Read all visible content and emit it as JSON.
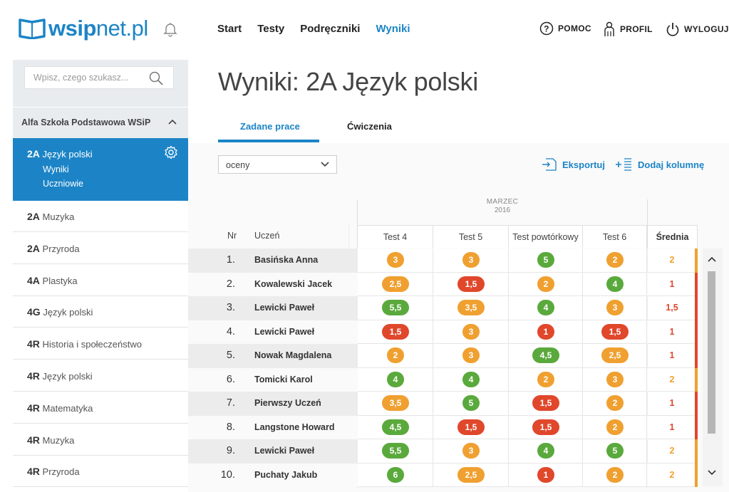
{
  "brand": {
    "logo_text_bold": "wsip",
    "logo_text_light": "net.pl"
  },
  "nav": [
    {
      "label": "Start",
      "active": false
    },
    {
      "label": "Testy",
      "active": false
    },
    {
      "label": "Podręczniki",
      "active": false
    },
    {
      "label": "Wyniki",
      "active": true
    }
  ],
  "header_actions": {
    "help": "POMOC",
    "profile": "PROFIL",
    "logout": "WYLOGUJ"
  },
  "sidebar": {
    "search_placeholder": "Wpisz, czego szukasz...",
    "school": "Alfa Szkoła Podstawowa WSiP",
    "active_class": {
      "code": "2A",
      "name": "Język polski",
      "sub1": "Wyniki",
      "sub2": "Uczniowie"
    },
    "classes": [
      {
        "code": "2A",
        "name": "Muzyka"
      },
      {
        "code": "2A",
        "name": "Przyroda"
      },
      {
        "code": "4A",
        "name": "Plastyka"
      },
      {
        "code": "4G",
        "name": "Język polski"
      },
      {
        "code": "4R",
        "name": "Historia i społeczeństwo"
      },
      {
        "code": "4R",
        "name": "Język polski"
      },
      {
        "code": "4R",
        "name": "Matematyka"
      },
      {
        "code": "4R",
        "name": "Muzyka"
      },
      {
        "code": "4R",
        "name": "Przyroda"
      }
    ]
  },
  "page_title": "Wyniki: 2A Język polski",
  "tabs": [
    {
      "label": "Zadane prace",
      "active": true
    },
    {
      "label": "Ćwiczenia",
      "active": false
    }
  ],
  "filter_select": "oceny",
  "actions": {
    "export": "Eksportuj",
    "add_column": "Dodaj kolumnę"
  },
  "table": {
    "month": "MARZEC",
    "year": "2016",
    "col_nr": "Nr",
    "col_student": "Uczeń",
    "columns": [
      "Test 4",
      "Test 5",
      "Test powtórkowy",
      "Test 6"
    ],
    "col_avg": "Średnia",
    "rows": [
      {
        "nr": "1.",
        "name": "Basińska Anna",
        "grades": [
          "3",
          "3",
          "5",
          "2"
        ],
        "avg": "2"
      },
      {
        "nr": "2.",
        "name": "Kowalewski Jacek",
        "grades": [
          "2,5",
          "1,5",
          "2",
          "4"
        ],
        "avg": "1"
      },
      {
        "nr": "3.",
        "name": "Lewicki Paweł",
        "grades": [
          "5,5",
          "3,5",
          "4",
          "3"
        ],
        "avg": "1,5"
      },
      {
        "nr": "4.",
        "name": "Lewicki Paweł",
        "grades": [
          "1,5",
          "3",
          "1",
          "1,5"
        ],
        "avg": "1"
      },
      {
        "nr": "5.",
        "name": "Nowak Magdalena",
        "grades": [
          "2",
          "3",
          "4,5",
          "2,5"
        ],
        "avg": "1"
      },
      {
        "nr": "6.",
        "name": "Tomicki Karol",
        "grades": [
          "4",
          "4",
          "2",
          "3"
        ],
        "avg": "2"
      },
      {
        "nr": "7.",
        "name": "Pierwszy Uczeń",
        "grades": [
          "3,5",
          "5",
          "1,5",
          "2"
        ],
        "avg": "1"
      },
      {
        "nr": "8.",
        "name": "Langstone Howard",
        "grades": [
          "4,5",
          "1,5",
          "1,5",
          "2"
        ],
        "avg": "1"
      },
      {
        "nr": "9.",
        "name": "Lewicki Paweł",
        "grades": [
          "5,5",
          "3",
          "4",
          "5"
        ],
        "avg": "2"
      },
      {
        "nr": "10.",
        "name": "Puchaty Jakub",
        "grades": [
          "6",
          "2,5",
          "1",
          "2"
        ],
        "avg": "2"
      }
    ]
  },
  "colors": {
    "accent": "#1c84c6",
    "grade_green": "#5aa93c",
    "grade_orange": "#f0a030",
    "grade_red": "#e0472b",
    "avg_orange": "#f0a030",
    "avg_red": "#e0472b"
  }
}
